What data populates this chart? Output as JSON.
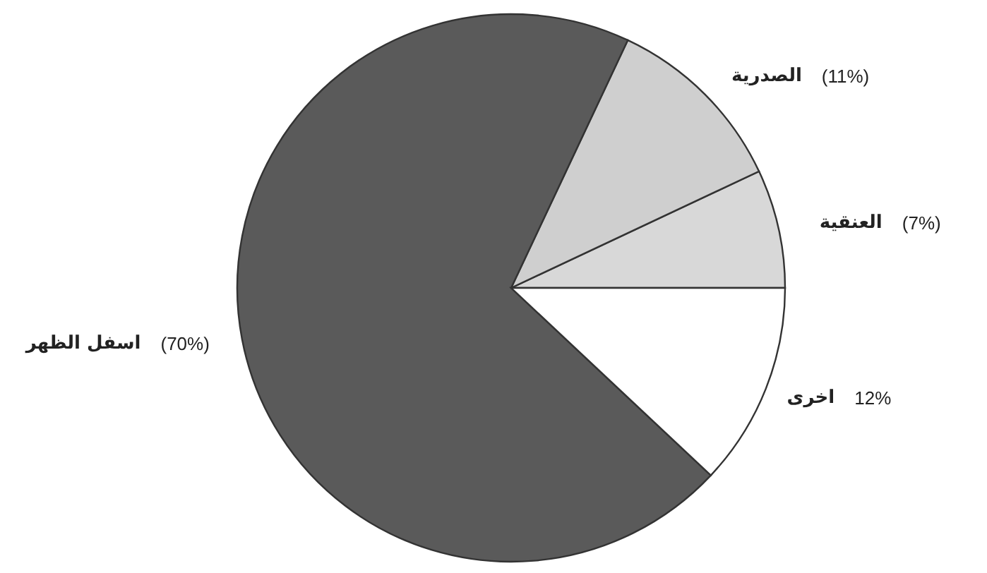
{
  "chart_data": {
    "type": "pie",
    "categories": [
      "العنقية",
      "الصدرية",
      "اسفل الظهر",
      "اخرى"
    ],
    "values": [
      7,
      11,
      70,
      12
    ],
    "colors": [
      "#d8d8d8",
      "#cfcfcf",
      "#5a5a5a",
      "#ffffff"
    ],
    "value_labels": [
      "(7%)",
      "(11%)",
      "(70%)",
      "12%"
    ]
  }
}
